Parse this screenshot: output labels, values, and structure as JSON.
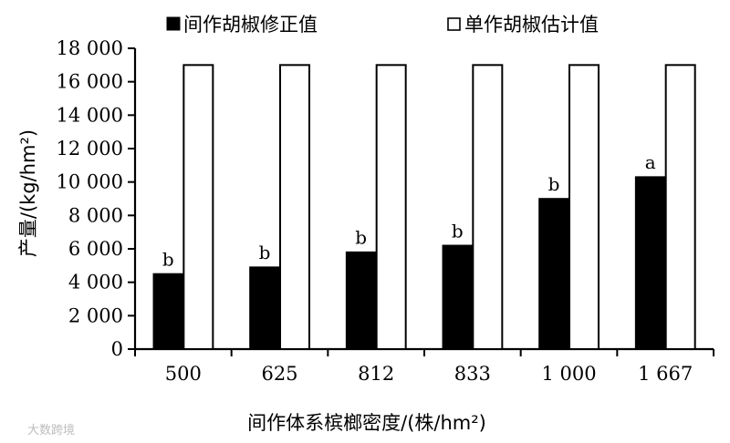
{
  "chart_data": {
    "type": "bar",
    "xlabel": "间作体系槟榔密度/(株/hm²)",
    "ylabel": "产量/(kg/hm²)",
    "categories": [
      "500",
      "625",
      "812",
      "833",
      "1 000",
      "1 667"
    ],
    "ylim": [
      0,
      18000
    ],
    "y_ticks": [
      0,
      2000,
      4000,
      6000,
      8000,
      10000,
      12000,
      14000,
      16000,
      18000
    ],
    "y_tick_labels": [
      "0",
      "2 000",
      "4 000",
      "6 000",
      "8 000",
      "10 000",
      "12 000",
      "14 000",
      "16 000",
      "18 000"
    ],
    "legend_position": "top",
    "series": [
      {
        "name": "间作胡椒修正值",
        "color": "#000000",
        "values": [
          4500,
          4900,
          5800,
          6200,
          9000,
          10300
        ],
        "labels": [
          "b",
          "b",
          "b",
          "b",
          "b",
          "a"
        ]
      },
      {
        "name": "单作胡椒估计值",
        "color": "#ffffff",
        "values": [
          17000,
          17000,
          17000,
          17000,
          17000,
          17000
        ]
      }
    ]
  },
  "watermark": "大数跨境"
}
